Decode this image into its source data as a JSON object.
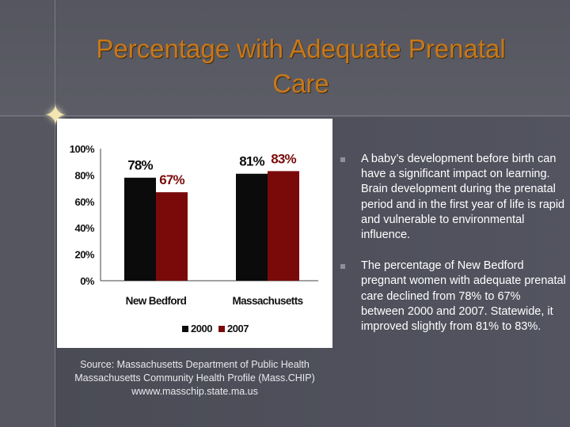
{
  "slide": {
    "title": "Percentage with Adequate Prenatal Care",
    "source": "Source:  Massachusetts Department of Public Health Massachusetts Community Health Profile (Mass.CHIP) wwww.masschip.state.ma.us",
    "bullets": [
      "A baby’s development before birth can have a significant impact on learning.  Brain development during the prenatal period and in the first year of life is rapid and vulnerable to environmental influence.",
      "The percentage of New Bedford pregnant women with adequate prenatal care declined from 78% to 67% between 2000 and 2007. Statewide, it improved slightly from 81% to 83%."
    ]
  },
  "colors": {
    "series_2000": "#0b0b0b",
    "series_2007": "#7a0a0a",
    "title": "#c8781a"
  },
  "chart_data": {
    "type": "bar",
    "title": "",
    "categories": [
      "New Bedford",
      "Massachusetts"
    ],
    "series": [
      {
        "name": "2000",
        "values": [
          78,
          81
        ]
      },
      {
        "name": "2007",
        "values": [
          67,
          83
        ]
      }
    ],
    "data_labels": [
      [
        "78%",
        "81%"
      ],
      [
        "67%",
        "83%"
      ]
    ],
    "y_ticks": [
      "0%",
      "20%",
      "40%",
      "60%",
      "80%",
      "100%"
    ],
    "y_tick_values": [
      0,
      20,
      40,
      60,
      80,
      100
    ],
    "ylim": [
      0,
      100
    ],
    "xlabel": "",
    "ylabel": "",
    "legend_position": "bottom",
    "grid": false
  }
}
